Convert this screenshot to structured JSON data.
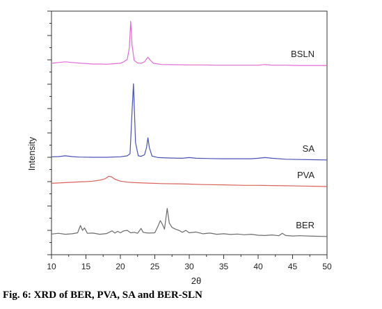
{
  "caption": "Fig. 6: XRD of BER, PVA, SA and BER-SLN",
  "chart_data": {
    "type": "line",
    "title": "",
    "xlabel": "2θ",
    "ylabel": "Intensity",
    "xlim": [
      10,
      50
    ],
    "ylim": [
      0,
      100
    ],
    "x_ticks": [
      10,
      15,
      20,
      25,
      30,
      35,
      40,
      45,
      50
    ],
    "y_tick_labels": false,
    "grid": false,
    "legend": "inline-right",
    "series": [
      {
        "name": "BSLN",
        "color": "#e36ad3",
        "x": [
          10,
          11,
          12,
          13,
          14,
          15,
          16,
          17,
          18,
          19,
          20,
          20.5,
          21,
          21.3,
          21.5,
          21.7,
          22,
          22.5,
          23,
          23.5,
          23.8,
          24.0,
          24.3,
          24.8,
          26,
          28,
          30,
          32,
          34,
          36,
          38,
          40,
          41,
          42,
          44,
          46,
          48,
          50
        ],
        "y": [
          78.6,
          78.9,
          79.2,
          78.9,
          78.7,
          78.5,
          78.3,
          78.3,
          78.2,
          78.4,
          78.6,
          79.2,
          80.2,
          85.0,
          95.8,
          86.0,
          79.8,
          78.7,
          78.6,
          79.2,
          80.4,
          81.1,
          80.0,
          78.6,
          78.1,
          78.0,
          77.9,
          77.9,
          77.8,
          77.8,
          77.8,
          77.8,
          78.1,
          77.8,
          77.8,
          77.7,
          77.7,
          77.7
        ]
      },
      {
        "name": "SA",
        "color": "#4a50b5",
        "x": [
          10,
          11,
          12,
          13,
          14,
          16,
          18,
          20,
          21,
          21.4,
          21.7,
          21.9,
          22.2,
          22.6,
          23,
          23.5,
          23.8,
          24.0,
          24.2,
          24.6,
          25.5,
          27,
          29,
          30,
          31,
          33,
          35,
          37,
          39,
          40,
          41,
          42,
          44,
          46,
          48,
          50
        ],
        "y": [
          40.2,
          40.3,
          40.6,
          40.3,
          40.1,
          40.0,
          40.0,
          40.2,
          40.6,
          41.5,
          59.0,
          70.2,
          46.0,
          40.6,
          40.4,
          41.0,
          44.0,
          48.0,
          44.0,
          40.5,
          39.9,
          39.7,
          39.6,
          39.9,
          39.6,
          39.5,
          39.4,
          39.4,
          39.4,
          39.6,
          39.9,
          39.6,
          39.2,
          39.1,
          39.0,
          38.9
        ]
      },
      {
        "name": "PVA",
        "color": "#d9625b",
        "x": [
          10,
          12,
          14,
          15,
          16,
          17,
          17.8,
          18.3,
          18.7,
          19.2,
          20,
          21,
          22,
          24,
          26,
          28,
          30,
          32,
          35,
          38,
          40,
          42,
          44,
          46,
          48,
          50
        ],
        "y": [
          29.3,
          29.6,
          29.9,
          30.0,
          30.2,
          30.6,
          31.2,
          32.2,
          32.0,
          31.0,
          30.2,
          29.8,
          29.6,
          29.4,
          29.2,
          29.1,
          29.0,
          28.8,
          28.7,
          28.5,
          28.5,
          28.4,
          28.3,
          28.2,
          28.1,
          28.0
        ]
      },
      {
        "name": "BER",
        "color": "#6b6b6b",
        "x": [
          10,
          11,
          12,
          13,
          13.8,
          14.2,
          14.5,
          14.8,
          15.2,
          16,
          17,
          18,
          18.8,
          19.2,
          19.6,
          20,
          20.5,
          21,
          21.5,
          22,
          22.5,
          23,
          23.3,
          23.7,
          24.2,
          25,
          25.5,
          25.8,
          26.1,
          26.4,
          26.8,
          27.1,
          27.5,
          28,
          28.5,
          29,
          29.5,
          30,
          31,
          32,
          33,
          34,
          35,
          36,
          37,
          38,
          39,
          40,
          41,
          42,
          43,
          43.5,
          44,
          45,
          46,
          48,
          50
        ],
        "y": [
          8.5,
          8.8,
          8.4,
          8.6,
          9.0,
          12.0,
          10.0,
          11.0,
          8.8,
          8.9,
          8.4,
          8.7,
          9.8,
          8.9,
          9.6,
          9.0,
          9.8,
          10.0,
          9.0,
          9.2,
          8.8,
          10.8,
          9.2,
          9.0,
          8.9,
          9.0,
          12.0,
          14.0,
          12.5,
          10.5,
          19.0,
          13.0,
          11.2,
          10.5,
          10.0,
          9.2,
          10.0,
          9.0,
          9.3,
          8.6,
          8.9,
          8.4,
          8.6,
          8.3,
          8.5,
          8.2,
          8.4,
          8.0,
          7.9,
          8.1,
          7.8,
          8.8,
          7.9,
          7.7,
          7.8,
          7.6,
          7.5
        ]
      }
    ]
  }
}
